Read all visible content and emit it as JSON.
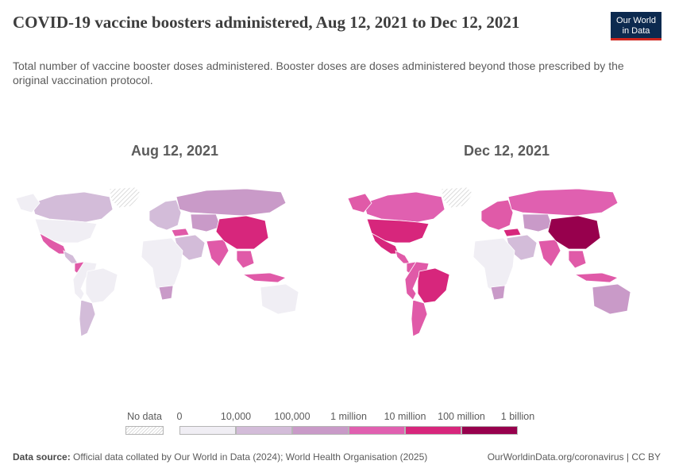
{
  "header": {
    "title": "COVID-19 vaccine boosters administered, Aug 12, 2021 to Dec 12, 2021",
    "subtitle": "Total number of vaccine booster doses administered. Booster doses are doses administered beyond those prescribed by the original vaccination protocol.",
    "logo_line1": "Our World",
    "logo_line2": "in Data"
  },
  "maps": [
    {
      "title": "Aug 12, 2021",
      "regions": {
        "north_america": "#f0eef4",
        "canada": "#d3bcd9",
        "usa": "#f0eef4",
        "greenland": "nodata",
        "mexico": "#e05aa8",
        "central_america": "#d3bcd9",
        "south_america": "#f0eef4",
        "brazil": "#f0eef4",
        "chile": "#d3bcd9",
        "colombia": "#e05aa8",
        "europe": "#d3bcd9",
        "russia": "#c99ac8",
        "middle_east": "#d3bcd9",
        "turkey": "#e05aa8",
        "africa": "#f0eef4",
        "south_africa": "#c99ac8",
        "india": "#e05aa8",
        "china": "#d7267c",
        "se_asia": "#e05aa8",
        "indonesia": "#e05aa8",
        "australia": "#f0eef4",
        "central_asia": "#c99ac8"
      }
    },
    {
      "title": "Dec 12, 2021",
      "regions": {
        "north_america": "#e05aa8",
        "canada": "#e060b0",
        "usa": "#d7267c",
        "greenland": "nodata",
        "mexico": "#d7267c",
        "central_america": "#e05aa8",
        "south_america": "#e05aa8",
        "brazil": "#d7267c",
        "chile": "#e05aa8",
        "colombia": "#e05aa8",
        "europe": "#e05aa8",
        "russia": "#e060b0",
        "middle_east": "#d3bcd9",
        "turkey": "#d7267c",
        "africa": "#f0eef4",
        "south_africa": "#c99ac8",
        "india": "#e05aa8",
        "china": "#97004d",
        "se_asia": "#e05aa8",
        "indonesia": "#e05aa8",
        "australia": "#c99ac8",
        "central_asia": "#c99ac8"
      }
    }
  ],
  "legend": {
    "no_data_label": "No data",
    "bins": [
      {
        "label": "0",
        "color": "#f0eef4"
      },
      {
        "label": "10,000",
        "color": "#d3bcd9"
      },
      {
        "label": "100,000",
        "color": "#c99ac8"
      },
      {
        "label": "1 million",
        "color": "#e060b0"
      },
      {
        "label": "10 million",
        "color": "#d7267c"
      },
      {
        "label": "100 million",
        "color": "#97004d"
      }
    ],
    "end_label": "1 billion"
  },
  "footer": {
    "source_label": "Data source:",
    "source_text": "Official data collated by Our World in Data (2024); World Health Organisation (2025)",
    "credit": "OurWorldinData.org/coronavirus | CC BY"
  }
}
